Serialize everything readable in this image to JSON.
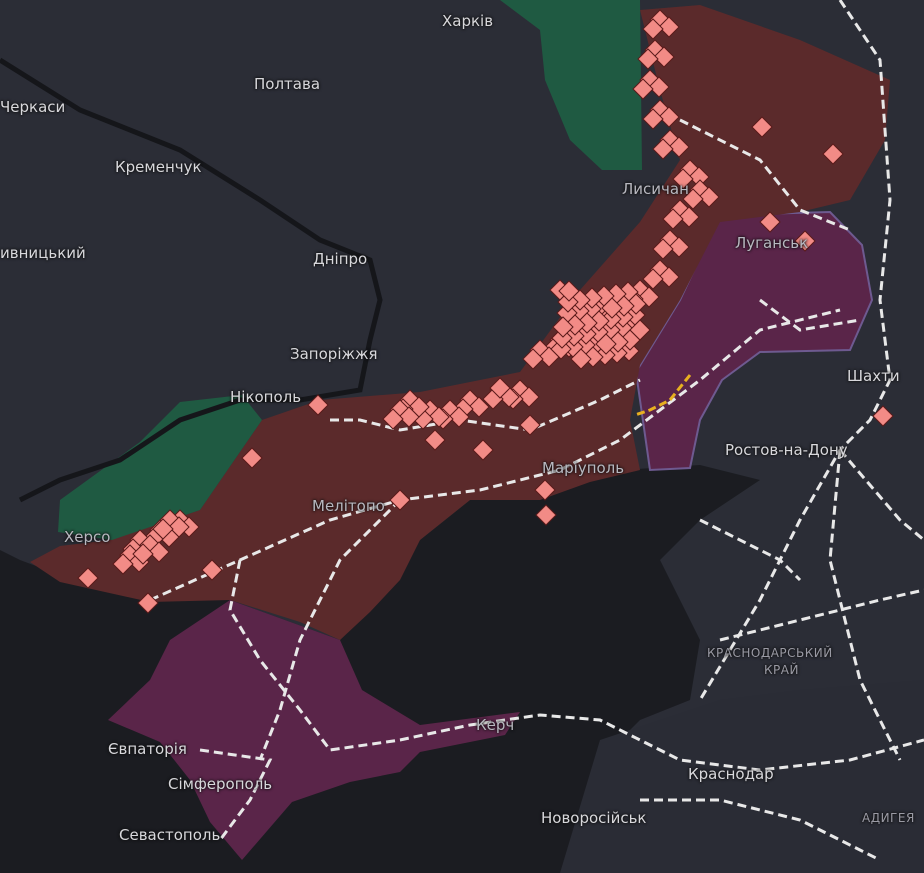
{
  "colors": {
    "land": "#2b2d36",
    "sea": "#1b1c21",
    "occupied": "#5b2a2b",
    "occupied_pre2022": "#5a2549",
    "liberated": "#1f5a42",
    "marker": "#f28b86",
    "railway": "#e8e8e8",
    "railway_highlight": "#e8b020"
  },
  "icons": {
    "marker": "explosion-diamond-icon"
  },
  "labels": {
    "kharkiv": "Харків",
    "poltava": "Полтава",
    "cherkasy": "Черкаси",
    "kremenchuk": "Кременчук",
    "kropyvnytskyi": "ивницький",
    "dnipro": "Дніпро",
    "zaporizhzhia": "Запоріжжя",
    "nikopol": "Нікополь",
    "kherson": "Херсо",
    "melitopol": "Мелітопо",
    "mariupol": "Маріуполь",
    "lysychansk": "Лисичан",
    "luhansk": "Луганськ",
    "shakhty": "Шахти",
    "rostov": "Ростов-на-Дону",
    "krasnodar_krai_1": "КРАСНОДАРСЬКИЙ",
    "krasnodar_krai_2": "КРАЙ",
    "krasnodar": "Краснодар",
    "adygea": "АДИГЕЯ",
    "novorossiysk": "Новоросійськ",
    "kerch": "Керч",
    "yevpatoria": "Євпаторія",
    "simferopol": "Сімферополь",
    "sevastopol": "Севастополь"
  }
}
